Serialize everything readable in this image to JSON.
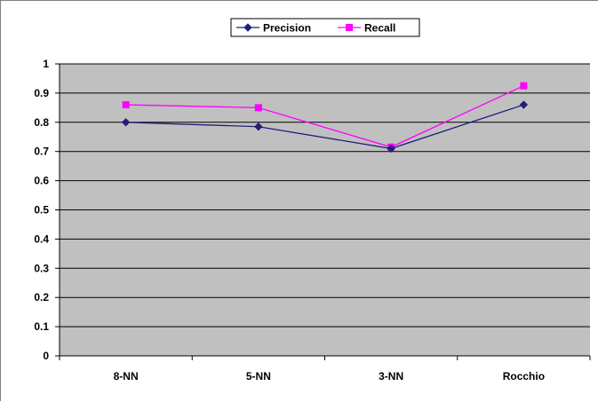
{
  "chart_data": {
    "type": "line",
    "categories": [
      "8-NN",
      "5-NN",
      "3-NN",
      "Rocchio"
    ],
    "series": [
      {
        "name": "Precision",
        "values": [
          0.8,
          0.785,
          0.71,
          0.86
        ],
        "color": "#1f1f7a",
        "marker": "diamond"
      },
      {
        "name": "Recall",
        "values": [
          0.86,
          0.85,
          0.715,
          0.925
        ],
        "color": "#ff00ff",
        "marker": "square"
      }
    ],
    "y_ticks": [
      "0",
      "0.1",
      "0.2",
      "0.3",
      "0.4",
      "0.5",
      "0.6",
      "0.7",
      "0.8",
      "0.9",
      "1"
    ],
    "ylim": [
      0,
      1
    ],
    "grid": true,
    "legend_position": "top-center",
    "plot_background": "#c0c0c0",
    "gridline_color": "#000000"
  }
}
